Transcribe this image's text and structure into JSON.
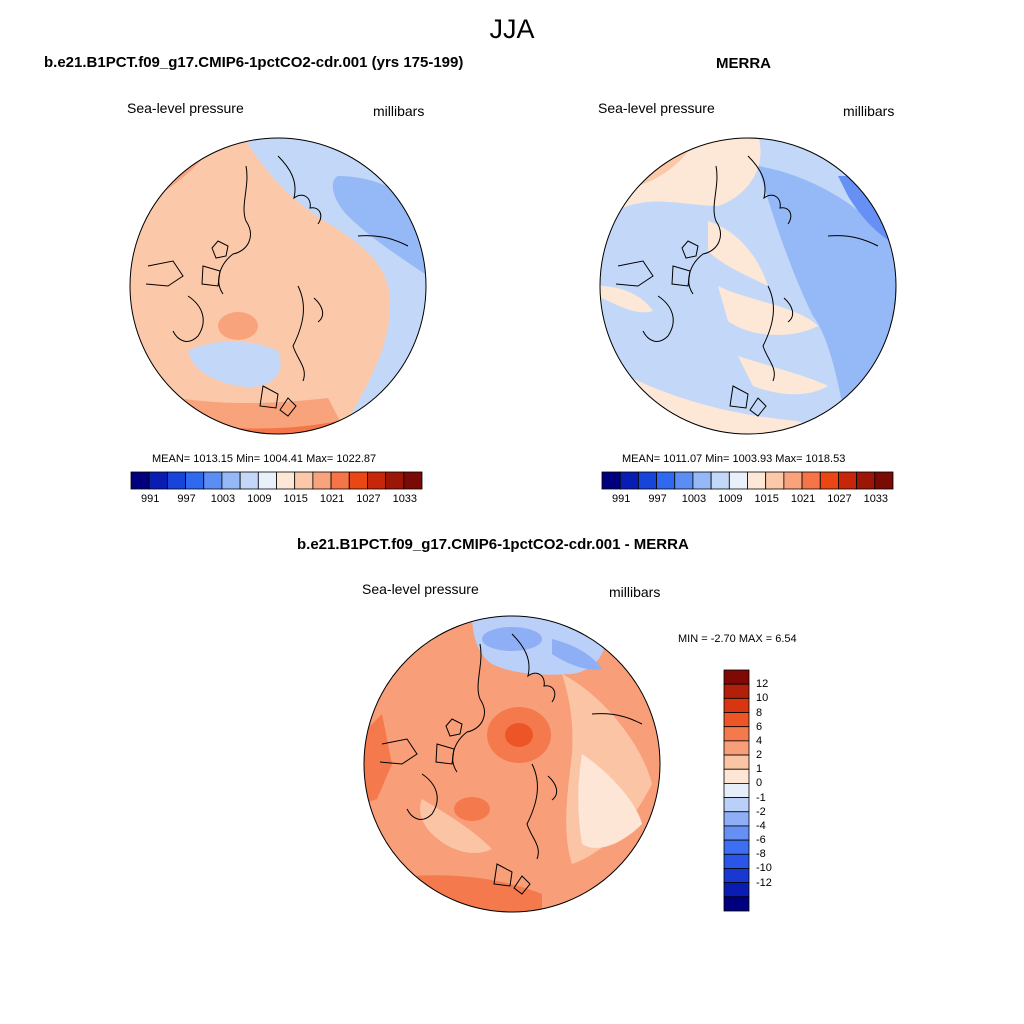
{
  "page_title": "JJA",
  "panels": [
    {
      "id": "model",
      "title": "b.e21.B1PCT.f09_g17.CMIP6-1pctCO2-cdr.001 (yrs 175-199)",
      "left_label": "Sea-level pressure",
      "right_label": "millibars",
      "stats": "MEAN= 1013.15  Min= 1004.41  Max= 1022.87"
    },
    {
      "id": "obs",
      "title": "MERRA",
      "left_label": "Sea-level pressure",
      "right_label": "millibars",
      "stats": "MEAN= 1011.07  Min= 1003.93  Max= 1018.53"
    },
    {
      "id": "diff",
      "title": "b.e21.B1PCT.f09_g17.CMIP6-1pctCO2-cdr.001 - MERRA",
      "left_label": "Sea-level pressure",
      "right_label": "millibars",
      "stats": "MIN =  -2.70 MAX =   6.54"
    }
  ],
  "colorbar_abs": {
    "colors": [
      "#00007f",
      "#0a1db3",
      "#1744d9",
      "#2f69f0",
      "#5a8ef5",
      "#95b8f7",
      "#c3d8f8",
      "#e7f0fb",
      "#fde8d8",
      "#fbc9aa",
      "#f9a37d",
      "#f57548",
      "#ea4714",
      "#c8260b",
      "#9c1608",
      "#7a0a05"
    ],
    "labels": [
      "991",
      "997",
      "1003",
      "1009",
      "1015",
      "1021",
      "1027",
      "1033"
    ]
  },
  "colorbar_diff": {
    "colors": [
      "#00007f",
      "#0a1db3",
      "#1838cf",
      "#2955e8",
      "#3e6ff2",
      "#6690f4",
      "#8eaff5",
      "#bad0f8",
      "#e6eef9",
      "#fde6d6",
      "#fbc4a4",
      "#f89e78",
      "#f47a4e",
      "#ed5527",
      "#d83510",
      "#b3200a",
      "#7f0a05"
    ],
    "labels": [
      "12",
      "10",
      "8",
      "6",
      "4",
      "2",
      "1",
      "0",
      "-1",
      "-2",
      "-4",
      "-6",
      "-8",
      "-10",
      "-12"
    ]
  }
}
